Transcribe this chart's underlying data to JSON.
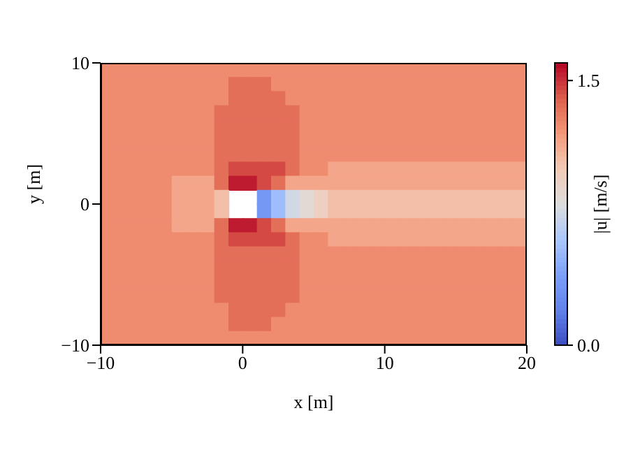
{
  "chart_data": {
    "type": "heatmap",
    "xlabel": "x [m]",
    "ylabel": "y [m]",
    "clabel": "|u| [m/s]",
    "xlim": [
      -10,
      20
    ],
    "xticks": [
      {
        "value": -10,
        "label": "−10"
      },
      0,
      10,
      20
    ],
    "ylim": [
      -10,
      10
    ],
    "yticks": [
      {
        "value": -10,
        "label": "−10"
      },
      0,
      10
    ],
    "clim": [
      0,
      1.6
    ],
    "cticks": [
      {
        "value": 0,
        "label": "0.0"
      },
      {
        "value": 1.5,
        "label": "1.5"
      }
    ],
    "cells": [
      [
        1.25,
        1.25,
        1.25,
        1.25,
        1.25,
        1.25,
        1.25,
        1.25,
        1.25,
        1.25,
        1.25,
        1.25,
        1.25,
        1.25,
        1.25,
        1.25,
        1.25,
        1.25,
        1.25,
        1.25,
        1.25,
        1.25,
        1.25,
        1.25,
        1.25,
        1.25,
        1.25,
        1.25,
        1.25,
        1.25
      ],
      [
        1.25,
        1.25,
        1.25,
        1.25,
        1.25,
        1.25,
        1.25,
        1.25,
        1.25,
        1.35,
        1.35,
        1.35,
        1.25,
        1.25,
        1.25,
        1.25,
        1.25,
        1.25,
        1.25,
        1.25,
        1.25,
        1.25,
        1.25,
        1.25,
        1.25,
        1.25,
        1.25,
        1.25,
        1.25,
        1.25
      ],
      [
        1.25,
        1.25,
        1.25,
        1.25,
        1.25,
        1.25,
        1.25,
        1.25,
        1.25,
        1.35,
        1.35,
        1.35,
        1.35,
        1.25,
        1.25,
        1.25,
        1.25,
        1.25,
        1.25,
        1.25,
        1.25,
        1.25,
        1.25,
        1.25,
        1.25,
        1.25,
        1.25,
        1.25,
        1.25,
        1.25
      ],
      [
        1.25,
        1.25,
        1.25,
        1.25,
        1.25,
        1.25,
        1.25,
        1.25,
        1.35,
        1.35,
        1.35,
        1.35,
        1.35,
        1.35,
        1.25,
        1.25,
        1.25,
        1.25,
        1.25,
        1.25,
        1.25,
        1.25,
        1.25,
        1.25,
        1.25,
        1.25,
        1.25,
        1.25,
        1.25,
        1.25
      ],
      [
        1.25,
        1.25,
        1.25,
        1.25,
        1.25,
        1.25,
        1.25,
        1.25,
        1.35,
        1.35,
        1.35,
        1.35,
        1.35,
        1.35,
        1.25,
        1.25,
        1.25,
        1.25,
        1.25,
        1.25,
        1.25,
        1.25,
        1.25,
        1.25,
        1.25,
        1.25,
        1.25,
        1.25,
        1.25,
        1.25
      ],
      [
        1.25,
        1.25,
        1.25,
        1.25,
        1.25,
        1.25,
        1.25,
        1.25,
        1.35,
        1.35,
        1.35,
        1.35,
        1.35,
        1.35,
        1.25,
        1.25,
        1.25,
        1.25,
        1.25,
        1.25,
        1.25,
        1.25,
        1.25,
        1.25,
        1.25,
        1.25,
        1.25,
        1.25,
        1.25,
        1.25
      ],
      [
        1.25,
        1.25,
        1.25,
        1.25,
        1.25,
        1.25,
        1.25,
        1.25,
        1.35,
        1.35,
        1.35,
        1.35,
        1.35,
        1.35,
        1.25,
        1.25,
        1.25,
        1.25,
        1.25,
        1.25,
        1.25,
        1.25,
        1.25,
        1.25,
        1.25,
        1.25,
        1.25,
        1.25,
        1.25,
        1.25
      ],
      [
        1.25,
        1.25,
        1.25,
        1.25,
        1.25,
        1.25,
        1.25,
        1.25,
        1.35,
        1.45,
        1.45,
        1.45,
        1.45,
        1.35,
        1.25,
        1.25,
        1.15,
        1.15,
        1.15,
        1.15,
        1.15,
        1.15,
        1.15,
        1.15,
        1.15,
        1.15,
        1.15,
        1.15,
        1.15,
        1.15
      ],
      [
        1.25,
        1.25,
        1.25,
        1.25,
        1.25,
        1.15,
        1.15,
        1.15,
        1.35,
        1.55,
        1.55,
        1.45,
        1.35,
        1.15,
        1.15,
        1.15,
        1.15,
        1.15,
        1.15,
        1.15,
        1.15,
        1.15,
        1.15,
        1.15,
        1.15,
        1.15,
        1.15,
        1.15,
        1.15,
        1.15
      ],
      [
        1.25,
        1.25,
        1.25,
        1.25,
        1.25,
        1.15,
        1.15,
        1.15,
        1.05,
        null,
        null,
        0.35,
        0.55,
        0.75,
        0.85,
        0.95,
        1.05,
        1.05,
        1.05,
        1.05,
        1.05,
        1.05,
        1.05,
        1.05,
        1.05,
        1.05,
        1.05,
        1.05,
        1.05,
        1.05
      ],
      [
        1.25,
        1.25,
        1.25,
        1.25,
        1.25,
        1.15,
        1.15,
        1.15,
        1.05,
        null,
        null,
        0.35,
        0.55,
        0.75,
        0.85,
        0.95,
        1.05,
        1.05,
        1.05,
        1.05,
        1.05,
        1.05,
        1.05,
        1.05,
        1.05,
        1.05,
        1.05,
        1.05,
        1.05,
        1.05
      ],
      [
        1.25,
        1.25,
        1.25,
        1.25,
        1.25,
        1.15,
        1.15,
        1.15,
        1.35,
        1.55,
        1.55,
        1.45,
        1.35,
        1.15,
        1.15,
        1.15,
        1.15,
        1.15,
        1.15,
        1.15,
        1.15,
        1.15,
        1.15,
        1.15,
        1.15,
        1.15,
        1.15,
        1.15,
        1.15,
        1.15
      ],
      [
        1.25,
        1.25,
        1.25,
        1.25,
        1.25,
        1.25,
        1.25,
        1.25,
        1.35,
        1.45,
        1.45,
        1.45,
        1.45,
        1.35,
        1.25,
        1.25,
        1.15,
        1.15,
        1.15,
        1.15,
        1.15,
        1.15,
        1.15,
        1.15,
        1.15,
        1.15,
        1.15,
        1.15,
        1.15,
        1.15
      ],
      [
        1.25,
        1.25,
        1.25,
        1.25,
        1.25,
        1.25,
        1.25,
        1.25,
        1.35,
        1.35,
        1.35,
        1.35,
        1.35,
        1.35,
        1.25,
        1.25,
        1.25,
        1.25,
        1.25,
        1.25,
        1.25,
        1.25,
        1.25,
        1.25,
        1.25,
        1.25,
        1.25,
        1.25,
        1.25,
        1.25
      ],
      [
        1.25,
        1.25,
        1.25,
        1.25,
        1.25,
        1.25,
        1.25,
        1.25,
        1.35,
        1.35,
        1.35,
        1.35,
        1.35,
        1.35,
        1.25,
        1.25,
        1.25,
        1.25,
        1.25,
        1.25,
        1.25,
        1.25,
        1.25,
        1.25,
        1.25,
        1.25,
        1.25,
        1.25,
        1.25,
        1.25
      ],
      [
        1.25,
        1.25,
        1.25,
        1.25,
        1.25,
        1.25,
        1.25,
        1.25,
        1.35,
        1.35,
        1.35,
        1.35,
        1.35,
        1.35,
        1.25,
        1.25,
        1.25,
        1.25,
        1.25,
        1.25,
        1.25,
        1.25,
        1.25,
        1.25,
        1.25,
        1.25,
        1.25,
        1.25,
        1.25,
        1.25
      ],
      [
        1.25,
        1.25,
        1.25,
        1.25,
        1.25,
        1.25,
        1.25,
        1.25,
        1.35,
        1.35,
        1.35,
        1.35,
        1.35,
        1.35,
        1.25,
        1.25,
        1.25,
        1.25,
        1.25,
        1.25,
        1.25,
        1.25,
        1.25,
        1.25,
        1.25,
        1.25,
        1.25,
        1.25,
        1.25,
        1.25
      ],
      [
        1.25,
        1.25,
        1.25,
        1.25,
        1.25,
        1.25,
        1.25,
        1.25,
        1.25,
        1.35,
        1.35,
        1.35,
        1.35,
        1.25,
        1.25,
        1.25,
        1.25,
        1.25,
        1.25,
        1.25,
        1.25,
        1.25,
        1.25,
        1.25,
        1.25,
        1.25,
        1.25,
        1.25,
        1.25,
        1.25
      ],
      [
        1.25,
        1.25,
        1.25,
        1.25,
        1.25,
        1.25,
        1.25,
        1.25,
        1.25,
        1.35,
        1.35,
        1.35,
        1.25,
        1.25,
        1.25,
        1.25,
        1.25,
        1.25,
        1.25,
        1.25,
        1.25,
        1.25,
        1.25,
        1.25,
        1.25,
        1.25,
        1.25,
        1.25,
        1.25,
        1.25
      ],
      [
        1.25,
        1.25,
        1.25,
        1.25,
        1.25,
        1.25,
        1.25,
        1.25,
        1.25,
        1.25,
        1.25,
        1.25,
        1.25,
        1.25,
        1.25,
        1.25,
        1.25,
        1.25,
        1.25,
        1.25,
        1.25,
        1.25,
        1.25,
        1.25,
        1.25,
        1.25,
        1.25,
        1.25,
        1.25,
        1.25
      ]
    ]
  }
}
